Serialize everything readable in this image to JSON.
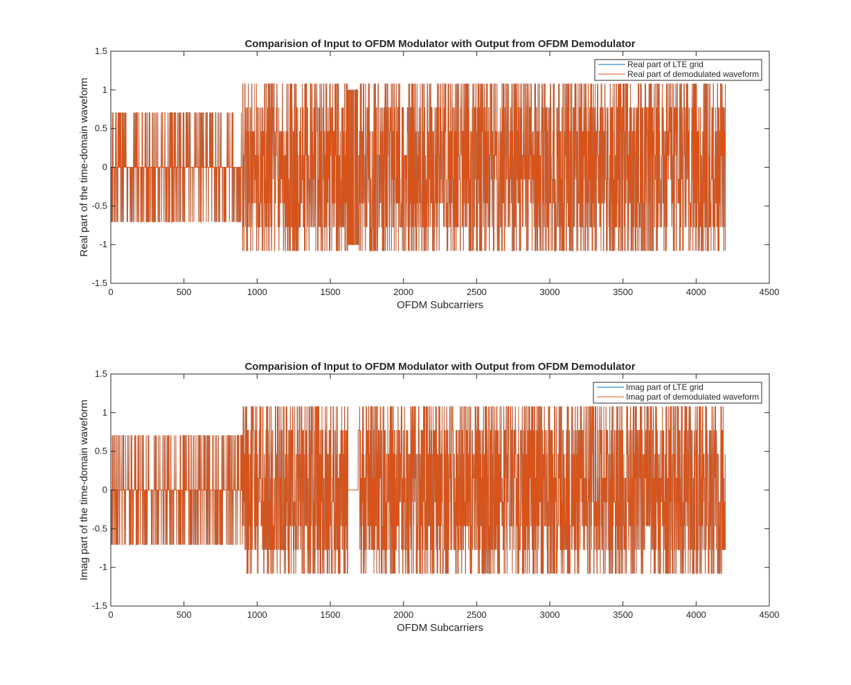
{
  "chart_data": [
    {
      "type": "line",
      "title": "Comparision of Input to OFDM Modulator with Output from OFDM Demodulator",
      "xlabel": "OFDM Subcarriers",
      "ylabel": "Real part of the time-domain waveform",
      "xlim": [
        0,
        4500
      ],
      "ylim": [
        -1.5,
        1.5
      ],
      "xticks": [
        0,
        500,
        1000,
        1500,
        2000,
        2500,
        3000,
        3500,
        4000,
        4500
      ],
      "yticks": [
        -1.5,
        -1,
        -0.5,
        0,
        0.5,
        1,
        1.5
      ],
      "grid": false,
      "legend_position": "top-right",
      "n_points": 4200,
      "series": [
        {
          "name": "Real part of LTE grid",
          "color": "#0072BD",
          "segments": [
            {
              "x_start": 0,
              "x_end": 900,
              "levels": [
                -0.7071,
                0,
                0.7071
              ]
            },
            {
              "x_start": 900,
              "x_end": 1620,
              "levels": [
                -1.08,
                -0.7715,
                -0.4629,
                -0.1543,
                0.1543,
                0.4629,
                0.7715,
                1.08
              ]
            },
            {
              "x_start": 1620,
              "x_end": 1690,
              "levels": [
                -1,
                1
              ]
            },
            {
              "x_start": 1690,
              "x_end": 4200,
              "levels": [
                -1.08,
                -0.7715,
                -0.4629,
                -0.1543,
                0.1543,
                0.4629,
                0.7715,
                1.08
              ]
            }
          ]
        },
        {
          "name": "Real part of demodulated waveform",
          "color": "#D95319",
          "segments": [
            {
              "x_start": 0,
              "x_end": 900,
              "levels": [
                -0.7071,
                0,
                0.7071
              ]
            },
            {
              "x_start": 900,
              "x_end": 1620,
              "levels": [
                -1.08,
                -0.7715,
                -0.4629,
                -0.1543,
                0.1543,
                0.4629,
                0.7715,
                1.08
              ]
            },
            {
              "x_start": 1620,
              "x_end": 1690,
              "levels": [
                -1,
                1
              ]
            },
            {
              "x_start": 1690,
              "x_end": 4200,
              "levels": [
                -1.08,
                -0.7715,
                -0.4629,
                -0.1543,
                0.1543,
                0.4629,
                0.7715,
                1.08
              ]
            }
          ]
        }
      ]
    },
    {
      "type": "line",
      "title": "Comparision of Input to OFDM Modulator with Output from OFDM Demodulator",
      "xlabel": "OFDM Subcarriers",
      "ylabel": "Imag part of the time-domain waveform",
      "xlim": [
        0,
        4500
      ],
      "ylim": [
        -1.5,
        1.5
      ],
      "xticks": [
        0,
        500,
        1000,
        1500,
        2000,
        2500,
        3000,
        3500,
        4000,
        4500
      ],
      "yticks": [
        -1.5,
        -1,
        -0.5,
        0,
        0.5,
        1,
        1.5
      ],
      "grid": false,
      "legend_position": "top-right",
      "n_points": 4200,
      "series": [
        {
          "name": "Imag part of LTE grid",
          "color": "#0072BD",
          "segments": [
            {
              "x_start": 0,
              "x_end": 900,
              "levels": [
                -0.7071,
                0,
                0.7071
              ]
            },
            {
              "x_start": 900,
              "x_end": 1620,
              "levels": [
                -1.08,
                -0.7715,
                -0.4629,
                -0.1543,
                0.1543,
                0.4629,
                0.7715,
                1.08
              ]
            },
            {
              "x_start": 1620,
              "x_end": 1690,
              "levels": [
                0
              ]
            },
            {
              "x_start": 1690,
              "x_end": 4200,
              "levels": [
                -1.08,
                -0.7715,
                -0.4629,
                -0.1543,
                0.1543,
                0.4629,
                0.7715,
                1.08
              ]
            }
          ]
        },
        {
          "name": "Imag part of demodulated waveform",
          "color": "#D95319",
          "segments": [
            {
              "x_start": 0,
              "x_end": 900,
              "levels": [
                -0.7071,
                0,
                0.7071
              ]
            },
            {
              "x_start": 900,
              "x_end": 1620,
              "levels": [
                -1.08,
                -0.7715,
                -0.4629,
                -0.1543,
                0.1543,
                0.4629,
                0.7715,
                1.08
              ]
            },
            {
              "x_start": 1620,
              "x_end": 1690,
              "levels": [
                0
              ]
            },
            {
              "x_start": 1690,
              "x_end": 4200,
              "levels": [
                -1.08,
                -0.7715,
                -0.4629,
                -0.1543,
                0.1543,
                0.4629,
                0.7715,
                1.08
              ]
            }
          ]
        }
      ]
    }
  ]
}
